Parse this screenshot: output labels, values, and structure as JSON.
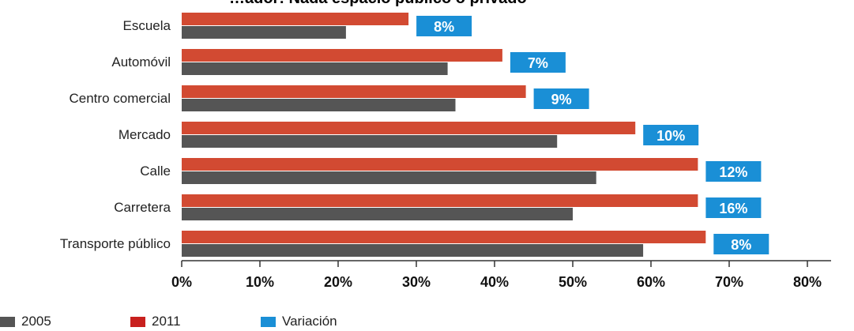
{
  "chart_data": {
    "type": "bar",
    "orientation": "horizontal",
    "title": "…ador: Nada espacio público o privado",
    "categories": [
      "Escuela",
      "Automóvil",
      "Centro comercial",
      "Mercado",
      "Calle",
      "Carretera",
      "Transporte público"
    ],
    "series": [
      {
        "name": "2011",
        "color": "#d24a32",
        "values": [
          29,
          41,
          44,
          58,
          66,
          66,
          67
        ]
      },
      {
        "name": "2005",
        "color": "#555555",
        "values": [
          21,
          34,
          35,
          48,
          53,
          50,
          59
        ]
      }
    ],
    "variation": {
      "name": "Variación",
      "color": "#1a8fd6",
      "values": [
        8,
        7,
        9,
        10,
        12,
        16,
        8
      ],
      "labels": [
        "8%",
        "7%",
        "9%",
        "10%",
        "12%",
        "16%",
        "8%"
      ]
    },
    "xlim": [
      0,
      80
    ],
    "xticks": [
      "0%",
      "10%",
      "20%",
      "30%",
      "40%",
      "50%",
      "60%",
      "70%",
      "80%"
    ],
    "grid": false,
    "legend_placement": "bottom-left"
  },
  "legend": [
    {
      "label": "2005",
      "color": "#555555"
    },
    {
      "label": "2011",
      "color": "#c8201e"
    },
    {
      "label": "Variación",
      "color": "#1a8fd6"
    }
  ]
}
